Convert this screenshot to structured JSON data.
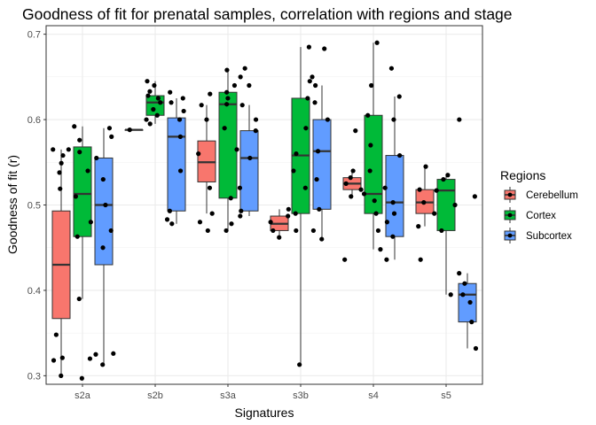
{
  "chart_data": {
    "type": "boxplot",
    "title": "Goodness of fit for prenatal samples, correlation with regions and stage",
    "xlabel": "Signatures",
    "ylabel": "Goodness of fit (r)",
    "categories": [
      "s2a",
      "s2b",
      "s3a",
      "s3b",
      "s4",
      "s5"
    ],
    "ylim": [
      0.29,
      0.71
    ],
    "yticks": [
      0.3,
      0.4,
      0.5,
      0.6,
      0.7
    ],
    "ytick_labels": [
      "0.3",
      "0.4",
      "0.5",
      "0.6",
      "0.7"
    ],
    "grid": true,
    "legend": {
      "title": "Regions",
      "placement": "right",
      "entries": [
        "Cerebellum",
        "Cortex",
        "Subcortex"
      ]
    },
    "colors": {
      "Cerebellum": "#f8766d",
      "Cortex": "#00ba38",
      "Subcortex": "#619cff"
    },
    "series": [
      {
        "name": "Cerebellum",
        "boxes": [
          {
            "category": "s2a",
            "min": 0.3,
            "q1": 0.367,
            "median": 0.43,
            "q3": 0.493,
            "max": 0.565
          },
          {
            "category": "s2b",
            "min": 0.588,
            "q1": 0.588,
            "median": 0.588,
            "q3": 0.588,
            "max": 0.588
          },
          {
            "category": "s3a",
            "min": 0.49,
            "q1": 0.527,
            "median": 0.55,
            "q3": 0.575,
            "max": 0.617
          },
          {
            "category": "s3b",
            "min": 0.462,
            "q1": 0.47,
            "median": 0.478,
            "q3": 0.487,
            "max": 0.495
          },
          {
            "category": "s4",
            "min": 0.51,
            "q1": 0.518,
            "median": 0.525,
            "q3": 0.532,
            "max": 0.54
          },
          {
            "category": "s5",
            "min": 0.475,
            "q1": 0.49,
            "median": 0.503,
            "q3": 0.518,
            "max": 0.545
          }
        ],
        "points": [
          {
            "category": "s2a",
            "values": [
              0.3,
              0.321,
              0.318,
              0.348,
              0.519,
              0.549,
              0.565,
              0.565,
              0.558,
              0.538
            ]
          },
          {
            "category": "s2b",
            "values": [
              0.588
            ]
          },
          {
            "category": "s3a",
            "values": [
              0.49,
              0.52,
              0.56,
              0.6,
              0.617,
              0.63,
              0.48,
              0.47
            ]
          },
          {
            "category": "s3b",
            "values": [
              0.462,
              0.47,
              0.48,
              0.487,
              0.495
            ]
          },
          {
            "category": "s4",
            "values": [
              0.436,
              0.51,
              0.518,
              0.525,
              0.532,
              0.54,
              0.587
            ]
          },
          {
            "category": "s5",
            "values": [
              0.436,
              0.475,
              0.49,
              0.503,
              0.518,
              0.545
            ]
          }
        ]
      },
      {
        "name": "Cortex",
        "boxes": [
          {
            "category": "s2a",
            "min": 0.39,
            "q1": 0.463,
            "median": 0.513,
            "q3": 0.568,
            "max": 0.592
          },
          {
            "category": "s2b",
            "min": 0.595,
            "q1": 0.605,
            "median": 0.62,
            "q3": 0.628,
            "max": 0.645
          },
          {
            "category": "s3a",
            "min": 0.47,
            "q1": 0.508,
            "median": 0.618,
            "q3": 0.632,
            "max": 0.658
          },
          {
            "category": "s3b",
            "min": 0.313,
            "q1": 0.49,
            "median": 0.558,
            "q3": 0.625,
            "max": 0.685
          },
          {
            "category": "s4",
            "min": 0.448,
            "q1": 0.49,
            "median": 0.513,
            "q3": 0.605,
            "max": 0.69
          },
          {
            "category": "s5",
            "min": 0.395,
            "q1": 0.47,
            "median": 0.517,
            "q3": 0.53,
            "max": 0.535
          }
        ],
        "points": [
          {
            "category": "s2a",
            "values": [
              0.39,
              0.51,
              0.54,
              0.562,
              0.576,
              0.592,
              0.48,
              0.463,
              0.32,
              0.297
            ]
          },
          {
            "category": "s2b",
            "values": [
              0.595,
              0.605,
              0.612,
              0.62,
              0.625,
              0.628,
              0.633,
              0.64,
              0.645,
              0.6
            ]
          },
          {
            "category": "s3a",
            "values": [
              0.47,
              0.478,
              0.508,
              0.565,
              0.59,
              0.618,
              0.625,
              0.632,
              0.64,
              0.658
            ]
          },
          {
            "category": "s3b",
            "values": [
              0.313,
              0.47,
              0.49,
              0.52,
              0.54,
              0.56,
              0.59,
              0.625,
              0.645,
              0.685
            ]
          },
          {
            "category": "s4",
            "values": [
              0.448,
              0.47,
              0.49,
              0.505,
              0.513,
              0.54,
              0.57,
              0.605,
              0.64,
              0.69
            ]
          },
          {
            "category": "s5",
            "values": [
              0.395,
              0.47,
              0.5,
              0.517,
              0.53,
              0.535
            ]
          }
        ]
      },
      {
        "name": "Subcortex",
        "boxes": [
          {
            "category": "s2a",
            "min": 0.313,
            "q1": 0.43,
            "median": 0.5,
            "q3": 0.555,
            "max": 0.59
          },
          {
            "category": "s2b",
            "min": 0.478,
            "q1": 0.493,
            "median": 0.58,
            "q3": 0.602,
            "max": 0.625
          },
          {
            "category": "s3a",
            "min": 0.487,
            "q1": 0.493,
            "median": 0.555,
            "q3": 0.587,
            "max": 0.617
          },
          {
            "category": "s3b",
            "min": 0.46,
            "q1": 0.495,
            "median": 0.563,
            "q3": 0.6,
            "max": 0.64
          },
          {
            "category": "s4",
            "min": 0.436,
            "q1": 0.463,
            "median": 0.503,
            "q3": 0.558,
            "max": 0.627
          },
          {
            "category": "s5",
            "min": 0.332,
            "q1": 0.363,
            "median": 0.395,
            "q3": 0.408,
            "max": 0.42
          }
        ],
        "points": [
          {
            "category": "s2a",
            "values": [
              0.313,
              0.325,
              0.326,
              0.45,
              0.47,
              0.5,
              0.53,
              0.555,
              0.59,
              0.58
            ]
          },
          {
            "category": "s2b",
            "values": [
              0.478,
              0.483,
              0.493,
              0.54,
              0.58,
              0.6,
              0.61,
              0.62,
              0.625,
              0.632
            ]
          },
          {
            "category": "s3a",
            "values": [
              0.487,
              0.493,
              0.52,
              0.555,
              0.587,
              0.6,
              0.617,
              0.64,
              0.65,
              0.66
            ]
          },
          {
            "category": "s3b",
            "values": [
              0.46,
              0.47,
              0.495,
              0.53,
              0.563,
              0.6,
              0.62,
              0.64,
              0.65,
              0.683
            ]
          },
          {
            "category": "s4",
            "values": [
              0.436,
              0.463,
              0.48,
              0.49,
              0.503,
              0.52,
              0.558,
              0.6,
              0.627,
              0.66
            ]
          },
          {
            "category": "s5",
            "values": [
              0.332,
              0.363,
              0.386,
              0.395,
              0.408,
              0.42,
              0.51,
              0.6
            ]
          }
        ]
      }
    ]
  }
}
